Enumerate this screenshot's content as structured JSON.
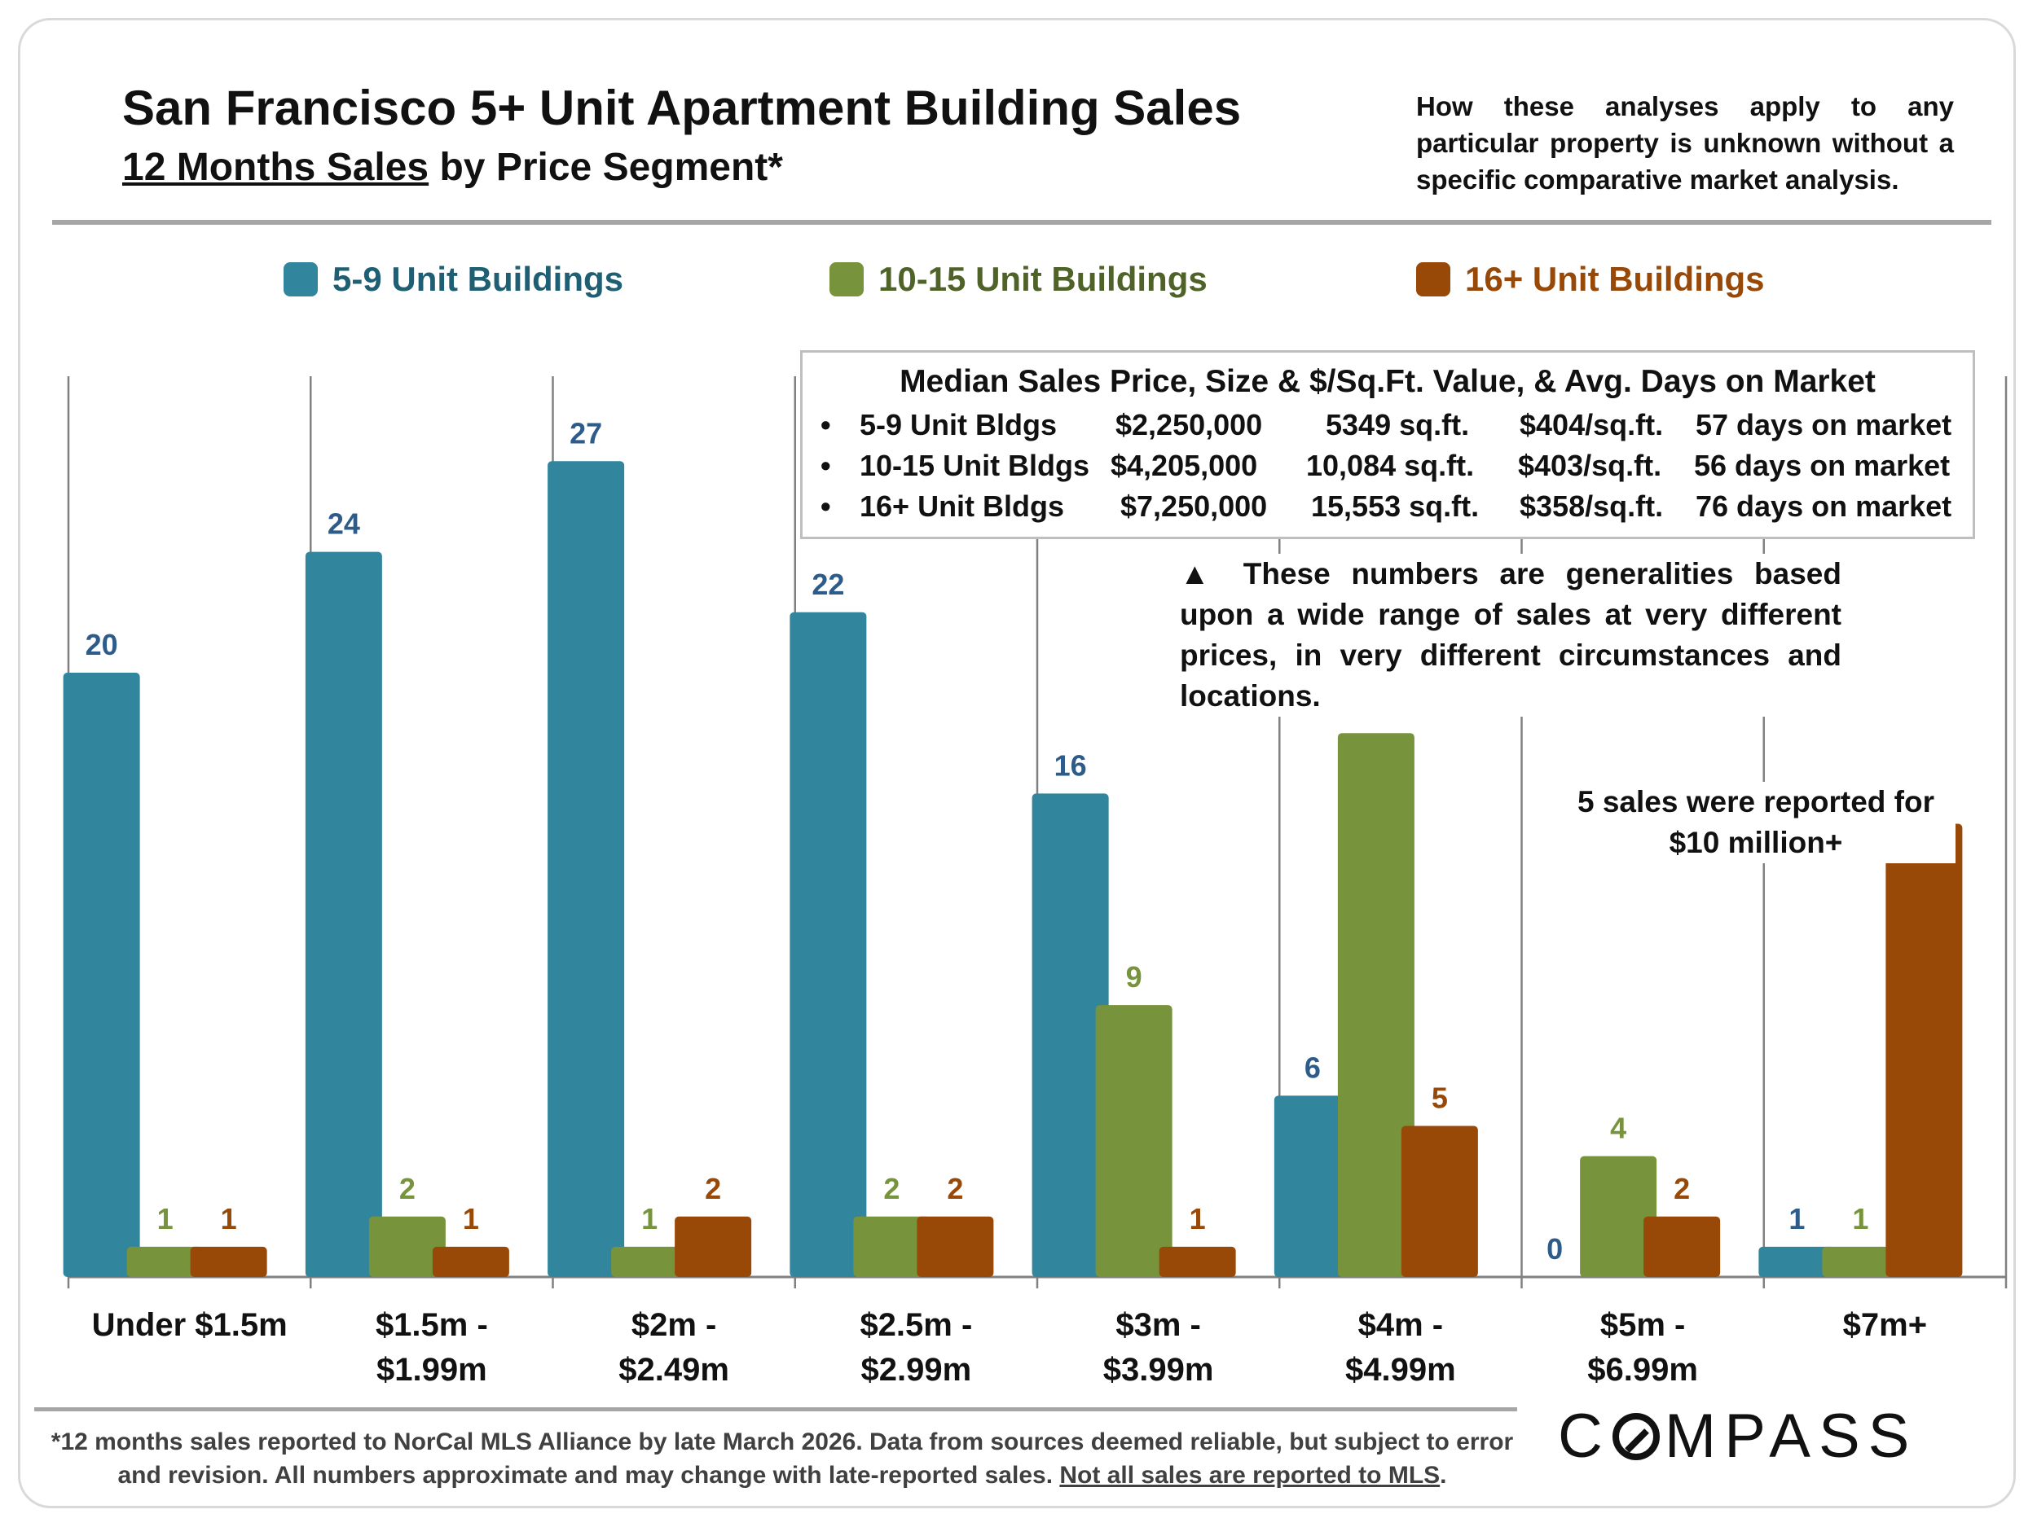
{
  "header": {
    "title": "San Francisco 5+ Unit Apartment Building Sales",
    "subtitle_underlined": "12 Months Sales",
    "subtitle_rest": " by Price Segment*",
    "disclaimer": "How these analyses apply to any particular property is unknown without a specific comparative market analysis."
  },
  "colors": {
    "blue": "#31859C",
    "green": "#77933C",
    "orange": "#984807",
    "blue_label": "#2E5C8A"
  },
  "legend": [
    "5-9 Unit Buildings",
    "10-15 Unit Buildings",
    "16+ Unit Buildings"
  ],
  "infobox": {
    "header": "Median Sales Price, Size & $/Sq.Ft. Value, & Avg. Days on Market",
    "rows": [
      {
        "bullet": "•",
        "name": "5-9 Unit Bldgs",
        "price": "$2,250,000",
        "size": "5349 sq.ft.",
        "ppsf": "$404/sq.ft.",
        "dom": "57 days on market"
      },
      {
        "bullet": "•",
        "name": "10-15 Unit Bldgs",
        "price": "$4,205,000",
        "size": "10,084 sq.ft.",
        "ppsf": "$403/sq.ft.",
        "dom": "56 days on market"
      },
      {
        "bullet": "•",
        "name": "16+ Unit Bldgs",
        "price": "$7,250,000",
        "size": "15,553 sq.ft.",
        "ppsf": "$358/sq.ft.",
        "dom": "76 days on market"
      }
    ]
  },
  "note_generalities": "▲ These numbers are generalities based upon a wide range of sales at very different prices, in very different circumstances and locations.",
  "note_ten_million": "5 sales were reported for $10 million+",
  "chart_data": {
    "type": "bar",
    "title": "12 Months Sales by Price Segment",
    "categories": [
      [
        "Under $1.5m"
      ],
      [
        "$1.5m -",
        "$1.99m"
      ],
      [
        "$2m -",
        "$2.49m"
      ],
      [
        "$2.5m -",
        "$2.99m"
      ],
      [
        "$3m -",
        "$3.99m"
      ],
      [
        "$4m -",
        "$4.99m"
      ],
      [
        "$5m -",
        "$6.99m"
      ],
      [
        "$7m+"
      ]
    ],
    "series": [
      {
        "name": "5-9 Unit Buildings",
        "values": [
          20,
          24,
          27,
          22,
          16,
          6,
          0,
          1
        ]
      },
      {
        "name": "10-15 Unit Buildings",
        "values": [
          1,
          2,
          1,
          2,
          9,
          18,
          4,
          1
        ]
      },
      {
        "name": "16+ Unit Buildings",
        "values": [
          1,
          1,
          2,
          2,
          1,
          5,
          2,
          15
        ]
      }
    ],
    "ylim": [
      0,
      27
    ],
    "xlabel": "",
    "ylabel": "",
    "grid": false
  },
  "footnote": {
    "text": "*12 months sales reported to NorCal MLS Alliance by late March 2026. Data from sources deemed reliable, but subject to error and revision. All numbers approximate and may change with late-reported sales. ",
    "underlined": "Not all sales are reported to MLS",
    "end": "."
  },
  "brand": {
    "pre": "C",
    "post": "MPASS"
  }
}
